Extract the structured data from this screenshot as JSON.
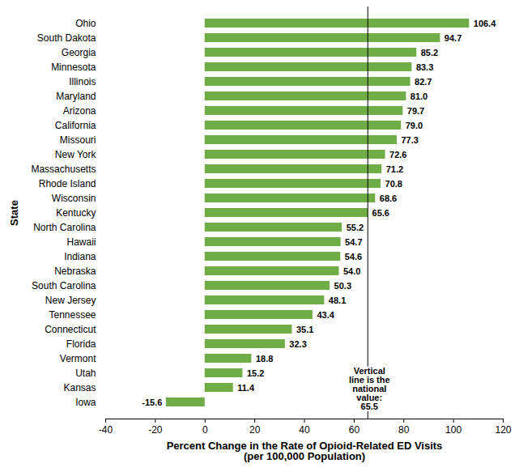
{
  "chart_data": {
    "type": "bar",
    "orientation": "horizontal",
    "x_label": "Percent Change in the Rate of Opioid-Related ED Visits\n(per 100,000 Population)",
    "y_label": "State",
    "categories": [
      "Ohio",
      "South Dakota",
      "Georgia",
      "Minnesota",
      "Illinois",
      "Maryland",
      "Arizona",
      "California",
      "Missouri",
      "New York",
      "Massachusetts",
      "Rhode Island",
      "Wisconsin",
      "Kentucky",
      "North Carolina",
      "Hawaii",
      "Indiana",
      "Nebraska",
      "South Carolina",
      "New Jersey",
      "Tennessee",
      "Connecticut",
      "Florida",
      "Vermont",
      "Utah",
      "Kansas",
      "Iowa"
    ],
    "values": [
      106.4,
      94.7,
      85.2,
      83.3,
      82.7,
      81.0,
      79.7,
      79.0,
      77.3,
      72.6,
      71.2,
      70.8,
      68.6,
      65.6,
      55.2,
      54.7,
      54.6,
      54.0,
      50.3,
      48.1,
      43.4,
      35.1,
      32.3,
      18.8,
      15.2,
      11.4,
      -15.6
    ],
    "value_labels": [
      "106.4",
      "94.7",
      "85.2",
      "83.3",
      "82.7",
      "81.0",
      "79.7",
      "79.0",
      "77.3",
      "72.6",
      "71.2",
      "70.8",
      "68.6",
      "65.6",
      "55.2",
      "54.7",
      "54.6",
      "54.0",
      "50.3",
      "48.1",
      "43.4",
      "35.1",
      "32.3",
      "18.8",
      "15.2",
      "11.4",
      "-15.6"
    ],
    "color": "#70ad47",
    "data_labels": true,
    "xlim": [
      -40,
      120
    ],
    "xticks": [
      -40,
      -20,
      0,
      20,
      40,
      60,
      80,
      100,
      120
    ],
    "grid": false,
    "reference_line": {
      "value": 65.5,
      "label": "Vertical\nline is the\nnational\nvalue:\n65.5"
    }
  }
}
